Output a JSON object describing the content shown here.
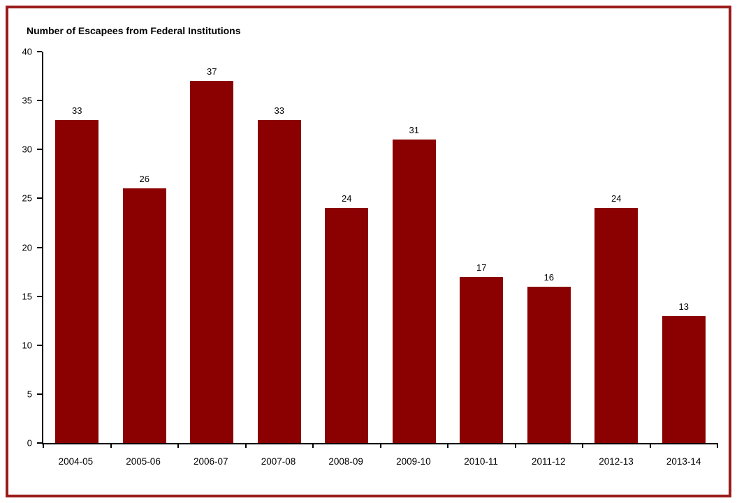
{
  "page": {
    "background": "#ffffff",
    "frame_border_color": "#9B1B1B"
  },
  "chart_data": {
    "type": "bar",
    "title": "Number of Escapees from Federal Institutions",
    "categories": [
      "2004-05",
      "2005-06",
      "2006-07",
      "2007-08",
      "2008-09",
      "2009-10",
      "2010-11",
      "2011-12",
      "2012-13",
      "2013-14"
    ],
    "values": [
      33,
      26,
      37,
      33,
      24,
      31,
      17,
      16,
      24,
      13
    ],
    "xlabel": "",
    "ylabel": "",
    "ylim": [
      0,
      40
    ],
    "ytick_step": 5,
    "yticks": [
      0,
      5,
      10,
      15,
      20,
      25,
      30,
      35,
      40
    ],
    "bar_color": "#8B0000",
    "axis_color": "#000000",
    "text_color": "#000000",
    "grid": false,
    "value_labels_shown": true,
    "legend": "none"
  }
}
